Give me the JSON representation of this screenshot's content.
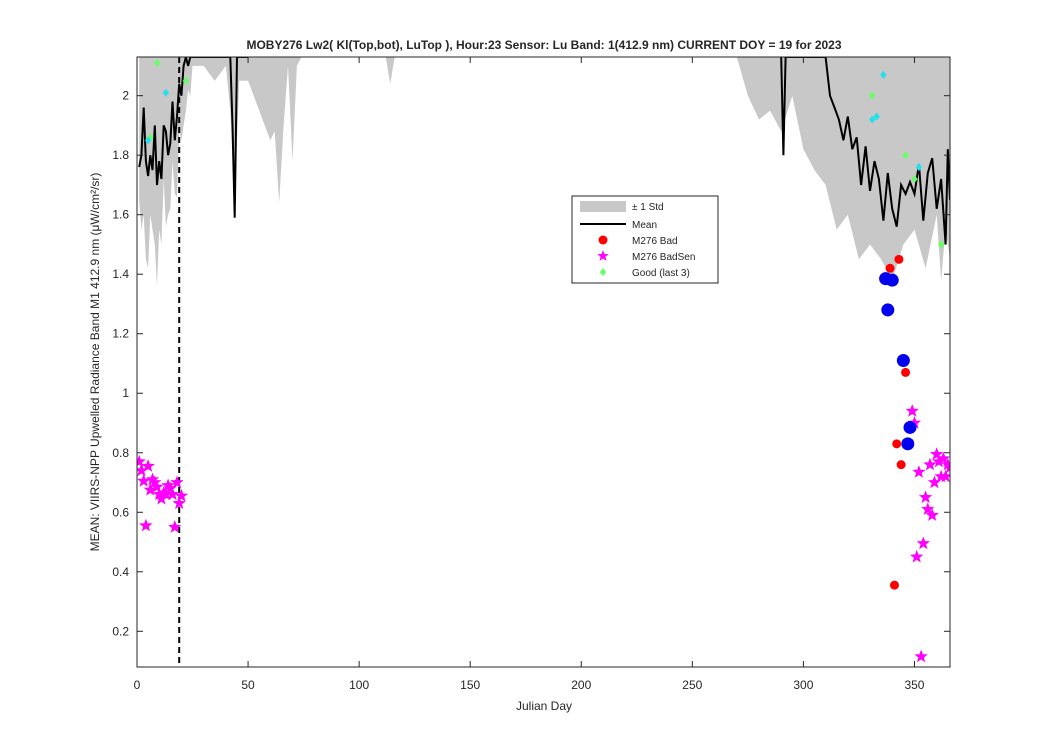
{
  "chart_data": {
    "type": "line",
    "title": "MOBY276   Lw2( Kl(Top,bot), LuTop ),   Hour:23 Sensor: Lu Band: 1(412.9 nm)   CURRENT DOY = 19 for 2023",
    "xlabel": "Julian Day",
    "ylabel": "MEAN: VIIRS-NPP Upwelled Radiance Band M1 412.9 nm (μW/cm²/sr)",
    "xlim": [
      0,
      366
    ],
    "ylim": [
      0.08,
      2.13
    ],
    "x_ticks": [
      0,
      50,
      100,
      150,
      200,
      250,
      300,
      350
    ],
    "y_ticks": [
      0.2,
      0.4,
      0.6,
      0.8,
      1,
      1.2,
      1.4,
      1.6,
      1.8,
      2
    ],
    "x_tick_labels": [
      "0",
      "50",
      "100",
      "150",
      "200",
      "250",
      "300",
      "350"
    ],
    "y_tick_labels": [
      "0.2",
      "0.4",
      "0.6",
      "0.8",
      "1",
      "1.2",
      "1.4",
      "1.6",
      "1.8",
      "2"
    ],
    "grid": false,
    "legend_position": "center-right",
    "current_doy": 19,
    "legend": {
      "std": "± 1 Std",
      "mean": "Mean",
      "bad": "M276 Bad",
      "badsen": "M276 BadSen",
      "good": "Good (last 3)"
    },
    "colors": {
      "std_band": "#c8c8c8",
      "mean_line": "#000000",
      "bad": "#ff0000",
      "badsen": "#ff00ff",
      "good": "#66ff66",
      "cyan": "#22e0f0",
      "blue": "#0000ee",
      "vline": "#000000"
    },
    "series": [
      {
        "name": "Mean",
        "x": [
          1,
          2,
          3,
          4,
          5,
          6,
          7,
          8,
          9,
          10,
          11,
          12,
          13,
          14,
          15,
          16,
          17,
          18,
          19,
          20,
          21,
          22,
          23,
          24,
          25,
          26,
          27,
          28,
          29,
          30,
          31,
          32,
          33,
          34,
          35,
          36,
          37,
          38,
          39,
          40,
          41,
          42,
          43,
          44,
          45,
          46,
          47,
          48,
          49,
          50,
          290,
          291,
          292,
          295,
          300,
          305,
          310,
          312,
          314,
          316,
          318,
          320,
          322,
          324,
          326,
          328,
          330,
          332,
          334,
          336,
          338,
          340,
          342,
          344,
          346,
          348,
          350,
          352,
          354,
          356,
          358,
          360,
          362,
          364,
          365,
          366
        ],
        "y": [
          1.76,
          1.8,
          1.96,
          1.78,
          1.73,
          1.8,
          1.75,
          1.9,
          1.7,
          1.78,
          1.72,
          1.9,
          1.88,
          1.8,
          1.84,
          1.98,
          1.85,
          1.93,
          2.04,
          2.0,
          2.1,
          2.13,
          2.1,
          2.13,
          2.13,
          2.13,
          2.13,
          2.13,
          2.13,
          2.13,
          2.13,
          2.13,
          2.13,
          2.13,
          2.13,
          2.13,
          2.13,
          2.13,
          2.13,
          2.13,
          2.13,
          2.13,
          1.9,
          1.59,
          2.13,
          2.13,
          2.13,
          2.13,
          2.13,
          2.13,
          2.13,
          1.8,
          2.13,
          2.13,
          2.13,
          2.13,
          2.13,
          2.0,
          1.96,
          1.92,
          1.85,
          1.93,
          1.82,
          1.86,
          1.7,
          1.83,
          1.68,
          1.78,
          1.72,
          1.58,
          1.74,
          1.62,
          1.56,
          1.7,
          1.67,
          1.71,
          1.67,
          1.77,
          1.58,
          1.74,
          1.79,
          1.62,
          1.72,
          1.5,
          1.82,
          1.65
        ]
      },
      {
        "name": "± 1 Std",
        "x": [
          1,
          2,
          3,
          4,
          5,
          6,
          7,
          8,
          9,
          10,
          11,
          12,
          13,
          14,
          15,
          16,
          17,
          18,
          19,
          20,
          21,
          22,
          23,
          24,
          25,
          30,
          35,
          40,
          42,
          44,
          46,
          50,
          60,
          62,
          64,
          66,
          68,
          70,
          72,
          74,
          100,
          112,
          114,
          116,
          200,
          270,
          275,
          280,
          285,
          290,
          295,
          300,
          305,
          310,
          315,
          320,
          325,
          330,
          335,
          340,
          345,
          350,
          355,
          360,
          362,
          364,
          366
        ],
        "upper": [
          2.13,
          2.13,
          2.13,
          2.13,
          2.13,
          2.13,
          2.13,
          2.13,
          2.13,
          2.13,
          2.13,
          2.13,
          2.13,
          2.13,
          2.13,
          2.13,
          2.13,
          2.13,
          2.13,
          2.13,
          2.13,
          2.13,
          2.13,
          2.13,
          2.13,
          2.13,
          2.13,
          2.13,
          2.13,
          2.13,
          2.13,
          2.13,
          2.13,
          2.13,
          2.13,
          2.13,
          2.13,
          2.13,
          2.13,
          2.13,
          2.13,
          2.13,
          2.13,
          2.13,
          2.13,
          2.13,
          2.13,
          2.13,
          2.13,
          2.13,
          2.13,
          2.13,
          2.13,
          2.13,
          2.13,
          2.13,
          2.13,
          2.13,
          2.13,
          2.13,
          2.13,
          2.13,
          2.13,
          2.13,
          2.13,
          2.13,
          2.13
        ],
        "lower": [
          1.65,
          1.55,
          1.6,
          1.45,
          1.42,
          1.6,
          1.55,
          1.5,
          1.36,
          1.55,
          1.5,
          1.72,
          1.56,
          1.6,
          1.62,
          1.78,
          1.67,
          1.66,
          1.88,
          1.85,
          1.9,
          1.95,
          2.02,
          2.0,
          2.1,
          2.1,
          2.05,
          2.1,
          1.95,
          1.64,
          2.05,
          2.05,
          1.85,
          1.88,
          1.64,
          1.9,
          2.1,
          1.78,
          2.1,
          2.13,
          2.13,
          2.13,
          2.04,
          2.13,
          2.13,
          2.13,
          2.0,
          1.92,
          1.95,
          1.88,
          2.0,
          1.82,
          1.75,
          1.7,
          1.55,
          1.6,
          1.45,
          1.5,
          1.45,
          1.38,
          1.5,
          1.55,
          1.42,
          1.6,
          1.38,
          1.55,
          1.45
        ]
      },
      {
        "name": "M276 Bad",
        "x": [
          337,
          339,
          341,
          342,
          343,
          344,
          346
        ],
        "y": [
          1.39,
          1.42,
          0.355,
          0.83,
          1.45,
          0.76,
          1.07
        ]
      },
      {
        "name": "M276 BadSen",
        "x": [
          1,
          2,
          3,
          4,
          5,
          6,
          7,
          8,
          9,
          10,
          11,
          12,
          13,
          14,
          15,
          16,
          17,
          18,
          19,
          20,
          349,
          350,
          351,
          352,
          353,
          354,
          355,
          356,
          357,
          358,
          359,
          360,
          361,
          362,
          363,
          364,
          365,
          366
        ],
        "y": [
          0.77,
          0.74,
          0.705,
          0.555,
          0.755,
          0.675,
          0.71,
          0.7,
          0.685,
          0.66,
          0.645,
          0.665,
          0.66,
          0.69,
          0.68,
          0.66,
          0.55,
          0.7,
          0.63,
          0.655,
          0.94,
          0.9,
          0.45,
          0.735,
          0.115,
          0.495,
          0.65,
          0.61,
          0.76,
          0.59,
          0.7,
          0.795,
          0.77,
          0.72,
          0.78,
          0.72,
          0.76,
          0.75
        ]
      },
      {
        "name": "Good (last 3)",
        "x": [
          6,
          9,
          22,
          331,
          346,
          350,
          362
        ],
        "y": [
          1.86,
          2.11,
          2.05,
          2.0,
          1.8,
          1.72,
          1.5
        ]
      }
    ],
    "extra_points": {
      "cyan": {
        "x": [
          5,
          13,
          331,
          333,
          336,
          352
        ],
        "y": [
          1.85,
          2.01,
          1.92,
          1.93,
          2.07,
          1.76
        ]
      },
      "blue": {
        "x": [
          337,
          338,
          340,
          345,
          347,
          348
        ],
        "y": [
          1.385,
          1.28,
          1.38,
          1.11,
          0.83,
          0.885
        ]
      }
    }
  }
}
